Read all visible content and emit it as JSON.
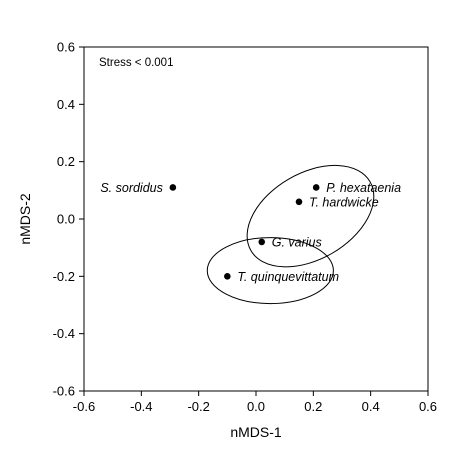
{
  "chart_data": {
    "type": "scatter",
    "title": "",
    "xlabel": "nMDS-1",
    "ylabel": "nMDS-2",
    "xlim": [
      -0.6,
      0.6
    ],
    "ylim": [
      -0.6,
      0.6
    ],
    "xticks": [
      -0.6,
      -0.4,
      -0.2,
      0.0,
      0.2,
      0.4,
      0.6
    ],
    "yticks": [
      -0.6,
      -0.4,
      -0.2,
      0.0,
      0.2,
      0.4,
      0.6
    ],
    "xtick_labels": [
      "-0.6",
      "-0.4",
      "-0.2",
      "0.0",
      "0.2",
      "0.4",
      "0.6"
    ],
    "ytick_labels": [
      "-0.6",
      "-0.4",
      "-0.2",
      "0.0",
      "0.2",
      "0.4",
      "0.6"
    ],
    "annotation": "Stress < 0.001",
    "grid": false,
    "points": [
      {
        "label": "S. sordidus",
        "x": -0.29,
        "y": 0.11
      },
      {
        "label": "P. hexataenia",
        "x": 0.21,
        "y": 0.11
      },
      {
        "label": "T. hardwicke",
        "x": 0.15,
        "y": 0.06
      },
      {
        "label": "G. varius",
        "x": 0.02,
        "y": -0.08
      },
      {
        "label": "T. quinquevittatum",
        "x": -0.1,
        "y": -0.2
      }
    ],
    "ellipses": [
      {
        "cx": 0.19,
        "cy": 0.01,
        "rx": 0.24,
        "ry": 0.15,
        "angle": 30
      },
      {
        "cx": 0.05,
        "cy": -0.18,
        "rx": 0.22,
        "ry": 0.115,
        "angle": 0
      }
    ]
  }
}
